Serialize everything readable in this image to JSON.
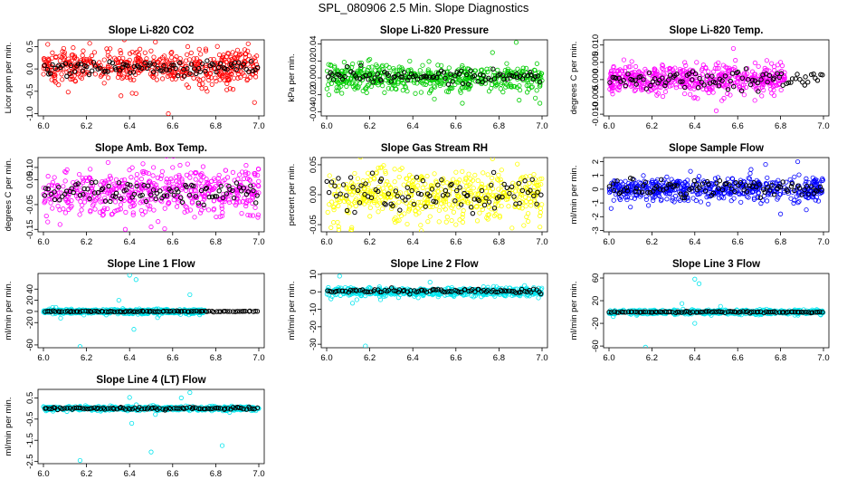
{
  "figure": {
    "title": "SPL_080906  2.5 Min. Slope Diagnostics"
  },
  "colors": {
    "red": "#ff0000",
    "green": "#00cc00",
    "magenta": "#ff00ff",
    "yellow": "#ffff00",
    "blue": "#0000ff",
    "cyan": "#00e5ee",
    "black": "#000000"
  },
  "chart_data": [
    {
      "type": "scatter",
      "panel": "co2",
      "title": "Slope Li-820 CO2",
      "xlabel": "",
      "ylabel": "Licor ppm per min.",
      "xlim": [
        6.0,
        7.0
      ],
      "ylim": [
        -1.05,
        0.65
      ],
      "xticks": [
        "6.0",
        "6.2",
        "6.4",
        "6.6",
        "6.8",
        "7.0"
      ],
      "yticks": [
        {
          "v": -1.0,
          "t": "-1.0"
        },
        {
          "v": -0.5,
          "t": "-0.5"
        },
        {
          "v": 0.0,
          "t": "0.0"
        },
        {
          "v": 0.5,
          "t": "0.5"
        }
      ],
      "grid": false,
      "color": "red",
      "series": [
        {
          "role": "cloud",
          "color": "red",
          "spread": 0.2,
          "center": 0.05,
          "outliers": [
            [
              6.02,
              0.55
            ],
            [
              6.58,
              -1.0
            ],
            [
              6.36,
              -0.6
            ],
            [
              6.52,
              0.6
            ],
            [
              6.98,
              -0.75
            ],
            [
              6.76,
              -0.5
            ],
            [
              6.67,
              0.5
            ],
            [
              6.43,
              -0.55
            ]
          ]
        },
        {
          "role": "fit",
          "color": "black",
          "spread": 0.08,
          "center": 0.02
        }
      ]
    },
    {
      "type": "scatter",
      "panel": "pressure",
      "title": "Slope Li-820 Pressure",
      "xlabel": "",
      "ylabel": "kPa per min.",
      "xlim": [
        6.0,
        7.0
      ],
      "ylim": [
        -0.045,
        0.045
      ],
      "xticks": [
        "6.0",
        "6.2",
        "6.4",
        "6.6",
        "6.8",
        "7.0"
      ],
      "yticks": [
        {
          "v": -0.04,
          "t": "-0.04"
        },
        {
          "v": -0.02,
          "t": "-0.02"
        },
        {
          "v": 0.0,
          "t": "0.00"
        },
        {
          "v": 0.02,
          "t": "0.02"
        },
        {
          "v": 0.04,
          "t": "0.04"
        }
      ],
      "grid": false,
      "color": "green",
      "series": [
        {
          "role": "cloud",
          "color": "green",
          "spread": 0.008,
          "center": 0.0,
          "outliers": [
            [
              6.88,
              0.042
            ],
            [
              6.63,
              -0.03
            ],
            [
              6.01,
              -0.02
            ],
            [
              6.99,
              -0.03
            ],
            [
              6.77,
              0.03
            ],
            [
              6.5,
              -0.025
            ]
          ]
        },
        {
          "role": "fit",
          "color": "black",
          "spread": 0.004,
          "center": 0.002
        }
      ]
    },
    {
      "type": "scatter",
      "panel": "temp",
      "title": "Slope Li-820 Temp.",
      "xlabel": "",
      "ylabel": "degrees C per min.",
      "xlim": [
        6.0,
        7.0
      ],
      "ylim": [
        -0.0105,
        0.0115
      ],
      "xticks": [
        "6.0",
        "6.2",
        "6.4",
        "6.6",
        "6.8",
        "7.0"
      ],
      "yticks": [
        {
          "v": -0.01,
          "t": "-0.010"
        },
        {
          "v": -0.005,
          "t": "-0.005"
        },
        {
          "v": 0.0,
          "t": "0.000"
        },
        {
          "v": 0.005,
          "t": "0.005"
        },
        {
          "v": 0.01,
          "t": "0.010"
        }
      ],
      "grid": false,
      "color": "magenta",
      "series": [
        {
          "role": "cloud",
          "color": "magenta",
          "spread": 0.002,
          "center": 0.0,
          "xmax": 6.82,
          "outliers": [
            [
              6.23,
              -0.004
            ],
            [
              6.5,
              -0.009
            ],
            [
              6.58,
              0.009
            ],
            [
              6.8,
              0.005
            ],
            [
              6.68,
              -0.006
            ]
          ]
        },
        {
          "role": "fit",
          "color": "black",
          "spread": 0.0012,
          "center": 0.0
        }
      ]
    },
    {
      "type": "scatter",
      "panel": "box",
      "title": "Slope Amb. Box Temp.",
      "xlabel": "",
      "ylabel": "degrees C per min.",
      "xlim": [
        6.0,
        7.0
      ],
      "ylim": [
        -0.16,
        0.14
      ],
      "xticks": [
        "6.0",
        "6.2",
        "6.4",
        "6.6",
        "6.8",
        "7.0"
      ],
      "yticks": [
        {
          "v": -0.15,
          "t": "-0.15"
        },
        {
          "v": -0.05,
          "t": "-0.05"
        },
        {
          "v": 0.05,
          "t": "0.05"
        },
        {
          "v": 0.1,
          "t": "0.10"
        }
      ],
      "grid": false,
      "color": "magenta",
      "series": [
        {
          "role": "cloud",
          "color": "magenta",
          "spread": 0.045,
          "center": 0.0,
          "outliers": [
            [
              6.3,
              0.12
            ],
            [
              6.6,
              0.1
            ],
            [
              6.38,
              -0.15
            ],
            [
              6.02,
              -0.12
            ],
            [
              6.88,
              0.08
            ],
            [
              6.5,
              -0.14
            ]
          ]
        },
        {
          "role": "fit",
          "color": "black",
          "spread": 0.02,
          "center": 0.0
        }
      ]
    },
    {
      "type": "scatter",
      "panel": "rh",
      "title": "Slope Gas Stream RH",
      "xlabel": "",
      "ylabel": "percent per min.",
      "xlim": [
        6.0,
        7.0
      ],
      "ylim": [
        -0.062,
        0.062
      ],
      "xticks": [
        "6.0",
        "6.2",
        "6.4",
        "6.6",
        "6.8",
        "7.0"
      ],
      "yticks": [
        {
          "v": -0.05,
          "t": "-0.05"
        },
        {
          "v": 0.0,
          "t": "0.00"
        },
        {
          "v": 0.05,
          "t": "0.05"
        }
      ],
      "grid": false,
      "color": "yellow",
      "series": [
        {
          "role": "cloud",
          "color": "yellow",
          "spread": 0.022,
          "center": 0.0,
          "outliers": [
            [
              6.77,
              0.06
            ],
            [
              6.02,
              -0.055
            ],
            [
              6.44,
              -0.06
            ],
            [
              6.6,
              -0.05
            ]
          ]
        },
        {
          "role": "fit",
          "color": "black",
          "spread": 0.015,
          "center": 0.0
        }
      ]
    },
    {
      "type": "scatter",
      "panel": "sample",
      "title": "Slope Sample Flow",
      "xlabel": "",
      "ylabel": "ml/min per min.",
      "xlim": [
        6.0,
        7.0
      ],
      "ylim": [
        -3.1,
        2.3
      ],
      "xticks": [
        "6.0",
        "6.2",
        "6.4",
        "6.6",
        "6.8",
        "7.0"
      ],
      "yticks": [
        {
          "v": -3,
          "t": "-3"
        },
        {
          "v": -2,
          "t": "-2"
        },
        {
          "v": -1,
          "t": "-1"
        },
        {
          "v": 0,
          "t": "0"
        },
        {
          "v": 1,
          "t": "1"
        },
        {
          "v": 2,
          "t": "2"
        }
      ],
      "grid": false,
      "color": "blue",
      "series": [
        {
          "role": "cloud",
          "color": "blue",
          "spread": 0.4,
          "center": 0.0,
          "outliers": [
            [
              6.01,
              -1.4
            ],
            [
              6.38,
              1.3
            ],
            [
              6.73,
              1.8
            ],
            [
              6.88,
              2.0
            ],
            [
              6.92,
              -1.5
            ],
            [
              6.8,
              -1.8
            ],
            [
              6.1,
              -1.3
            ]
          ]
        },
        {
          "role": "fit",
          "color": "black",
          "spread": 0.3,
          "center": 0.1
        }
      ]
    },
    {
      "type": "scatter",
      "panel": "line1",
      "title": "Slope Line 1 Flow",
      "xlabel": "",
      "ylabel": "ml/min per min.",
      "xlim": [
        6.0,
        7.0
      ],
      "ylim": [
        -65,
        68
      ],
      "xticks": [
        "6.0",
        "6.2",
        "6.4",
        "6.6",
        "6.8",
        "7.0"
      ],
      "yticks": [
        {
          "v": -60,
          "t": "-60"
        },
        {
          "v": -20,
          "t": "-20"
        },
        {
          "v": 0,
          "t": "0"
        },
        {
          "v": 20,
          "t": "20"
        },
        {
          "v": 40,
          "t": "40"
        }
      ],
      "grid": false,
      "color": "cyan",
      "series": [
        {
          "role": "cloud",
          "color": "cyan",
          "spread": 2.0,
          "center": 0.0,
          "xmax": 6.75,
          "outliers": [
            [
              6.4,
              65
            ],
            [
              6.43,
              57
            ],
            [
              6.17,
              -63
            ],
            [
              6.42,
              -32
            ],
            [
              6.68,
              30
            ],
            [
              6.35,
              20
            ],
            [
              6.08,
              -12
            ],
            [
              6.53,
              -11
            ]
          ]
        },
        {
          "role": "fit",
          "color": "black",
          "spread": 0.4,
          "center": 0.0
        }
      ]
    },
    {
      "type": "scatter",
      "panel": "line2",
      "title": "Slope Line 2 Flow",
      "xlabel": "",
      "ylabel": "ml/min per min.",
      "xlim": [
        6.0,
        7.0
      ],
      "ylim": [
        -32,
        10.5
      ],
      "xticks": [
        "6.0",
        "6.2",
        "6.4",
        "6.6",
        "6.8",
        "7.0"
      ],
      "yticks": [
        {
          "v": -30,
          "t": "-30"
        },
        {
          "v": -20,
          "t": "-20"
        },
        {
          "v": -10,
          "t": "-10"
        },
        {
          "v": 0,
          "t": "0"
        },
        {
          "v": 10,
          "t": "10"
        }
      ],
      "grid": false,
      "color": "cyan",
      "series": [
        {
          "role": "cloud",
          "color": "cyan",
          "spread": 1.2,
          "center": 0.0,
          "outliers": [
            [
              6.06,
              9.0
            ],
            [
              6.12,
              -6.5
            ],
            [
              6.18,
              -31
            ],
            [
              6.25,
              -4.5
            ],
            [
              6.14,
              -4.5
            ],
            [
              6.48,
              5.5
            ],
            [
              6.02,
              -4
            ]
          ]
        },
        {
          "role": "fit",
          "color": "black",
          "spread": 0.6,
          "center": 0.5
        }
      ]
    },
    {
      "type": "scatter",
      "panel": "line3",
      "title": "Slope Line 3 Flow",
      "xlabel": "",
      "ylabel": "ml/min per min.",
      "xlim": [
        6.0,
        7.0
      ],
      "ylim": [
        -63,
        68
      ],
      "xticks": [
        "6.0",
        "6.2",
        "6.4",
        "6.6",
        "6.8",
        "7.0"
      ],
      "yticks": [
        {
          "v": -60,
          "t": "-60"
        },
        {
          "v": -20,
          "t": "-20"
        },
        {
          "v": 20,
          "t": "20"
        },
        {
          "v": 60,
          "t": "60"
        }
      ],
      "grid": false,
      "color": "cyan",
      "series": [
        {
          "role": "cloud",
          "color": "cyan",
          "spread": 2.0,
          "center": 0.0,
          "outliers": [
            [
              6.4,
              58
            ],
            [
              6.42,
              50
            ],
            [
              6.17,
              -62
            ],
            [
              6.4,
              -20
            ],
            [
              6.34,
              15
            ],
            [
              6.52,
              10
            ],
            [
              6.02,
              -8
            ]
          ]
        },
        {
          "role": "fit",
          "color": "black",
          "spread": 0.6,
          "center": 0.0
        }
      ]
    },
    {
      "type": "scatter",
      "panel": "line4",
      "title": "Slope Line 4 (LT) Flow",
      "xlabel": "",
      "ylabel": "ml/min per min.",
      "xlim": [
        6.0,
        7.0
      ],
      "ylim": [
        -2.6,
        0.9
      ],
      "xticks": [
        "6.0",
        "6.2",
        "6.4",
        "6.6",
        "6.8",
        "7.0"
      ],
      "yticks": [
        {
          "v": -2.5,
          "t": "-2.5"
        },
        {
          "v": -1.5,
          "t": "-1.5"
        },
        {
          "v": -0.5,
          "t": "-0.5"
        },
        {
          "v": 0.5,
          "t": "0.5"
        }
      ],
      "grid": false,
      "color": "cyan",
      "series": [
        {
          "role": "cloud",
          "color": "cyan",
          "spread": 0.05,
          "center": 0.0,
          "outliers": [
            [
              6.17,
              -2.45
            ],
            [
              6.5,
              -2.05
            ],
            [
              6.83,
              -1.75
            ],
            [
              6.68,
              0.75
            ],
            [
              6.41,
              -0.7
            ],
            [
              6.4,
              0.52
            ],
            [
              6.64,
              0.5
            ],
            [
              6.52,
              -0.28
            ]
          ]
        },
        {
          "role": "fit",
          "color": "black",
          "spread": 0.03,
          "center": 0.0
        }
      ]
    }
  ]
}
